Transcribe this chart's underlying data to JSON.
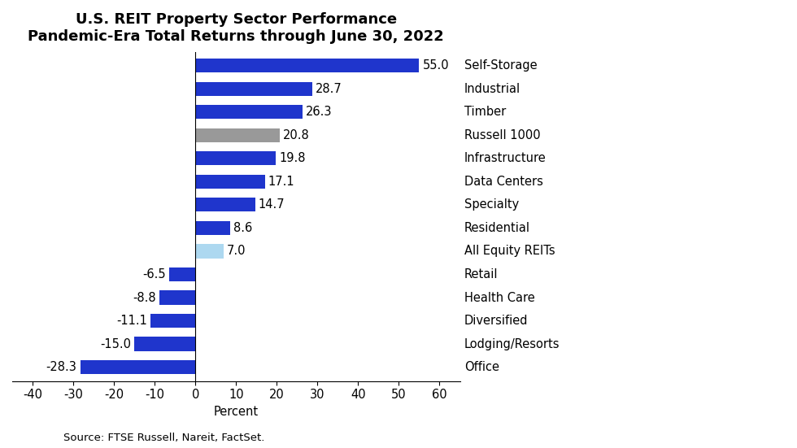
{
  "title_line1": "U.S. REIT Property Sector Performance",
  "title_line2": "Pandemic-Era Total Returns through June 30, 2022",
  "categories": [
    "Self-Storage",
    "Industrial",
    "Timber",
    "Russell 1000",
    "Infrastructure",
    "Data Centers",
    "Specialty",
    "Residential",
    "All Equity REITs",
    "Retail",
    "Health Care",
    "Diversified",
    "Lodging/Resorts",
    "Office"
  ],
  "values": [
    55.0,
    28.7,
    26.3,
    20.8,
    19.8,
    17.1,
    14.7,
    8.6,
    7.0,
    -6.5,
    -8.8,
    -11.1,
    -15.0,
    -28.3
  ],
  "colors": [
    "#1f35cc",
    "#1f35cc",
    "#1f35cc",
    "#999999",
    "#1f35cc",
    "#1f35cc",
    "#1f35cc",
    "#1f35cc",
    "#add8f0",
    "#1f35cc",
    "#1f35cc",
    "#1f35cc",
    "#1f35cc",
    "#1f35cc"
  ],
  "xlim": [
    -45,
    65
  ],
  "xlabel": "Percent",
  "xticks": [
    -40,
    -30,
    -20,
    -10,
    0,
    10,
    20,
    30,
    40,
    50,
    60
  ],
  "source_text": "Source: FTSE Russell, Nareit, FactSet.",
  "background_color": "#ffffff",
  "title_fontsize": 13,
  "label_fontsize": 10.5,
  "tick_fontsize": 10.5,
  "source_fontsize": 9.5,
  "bar_height": 0.6
}
